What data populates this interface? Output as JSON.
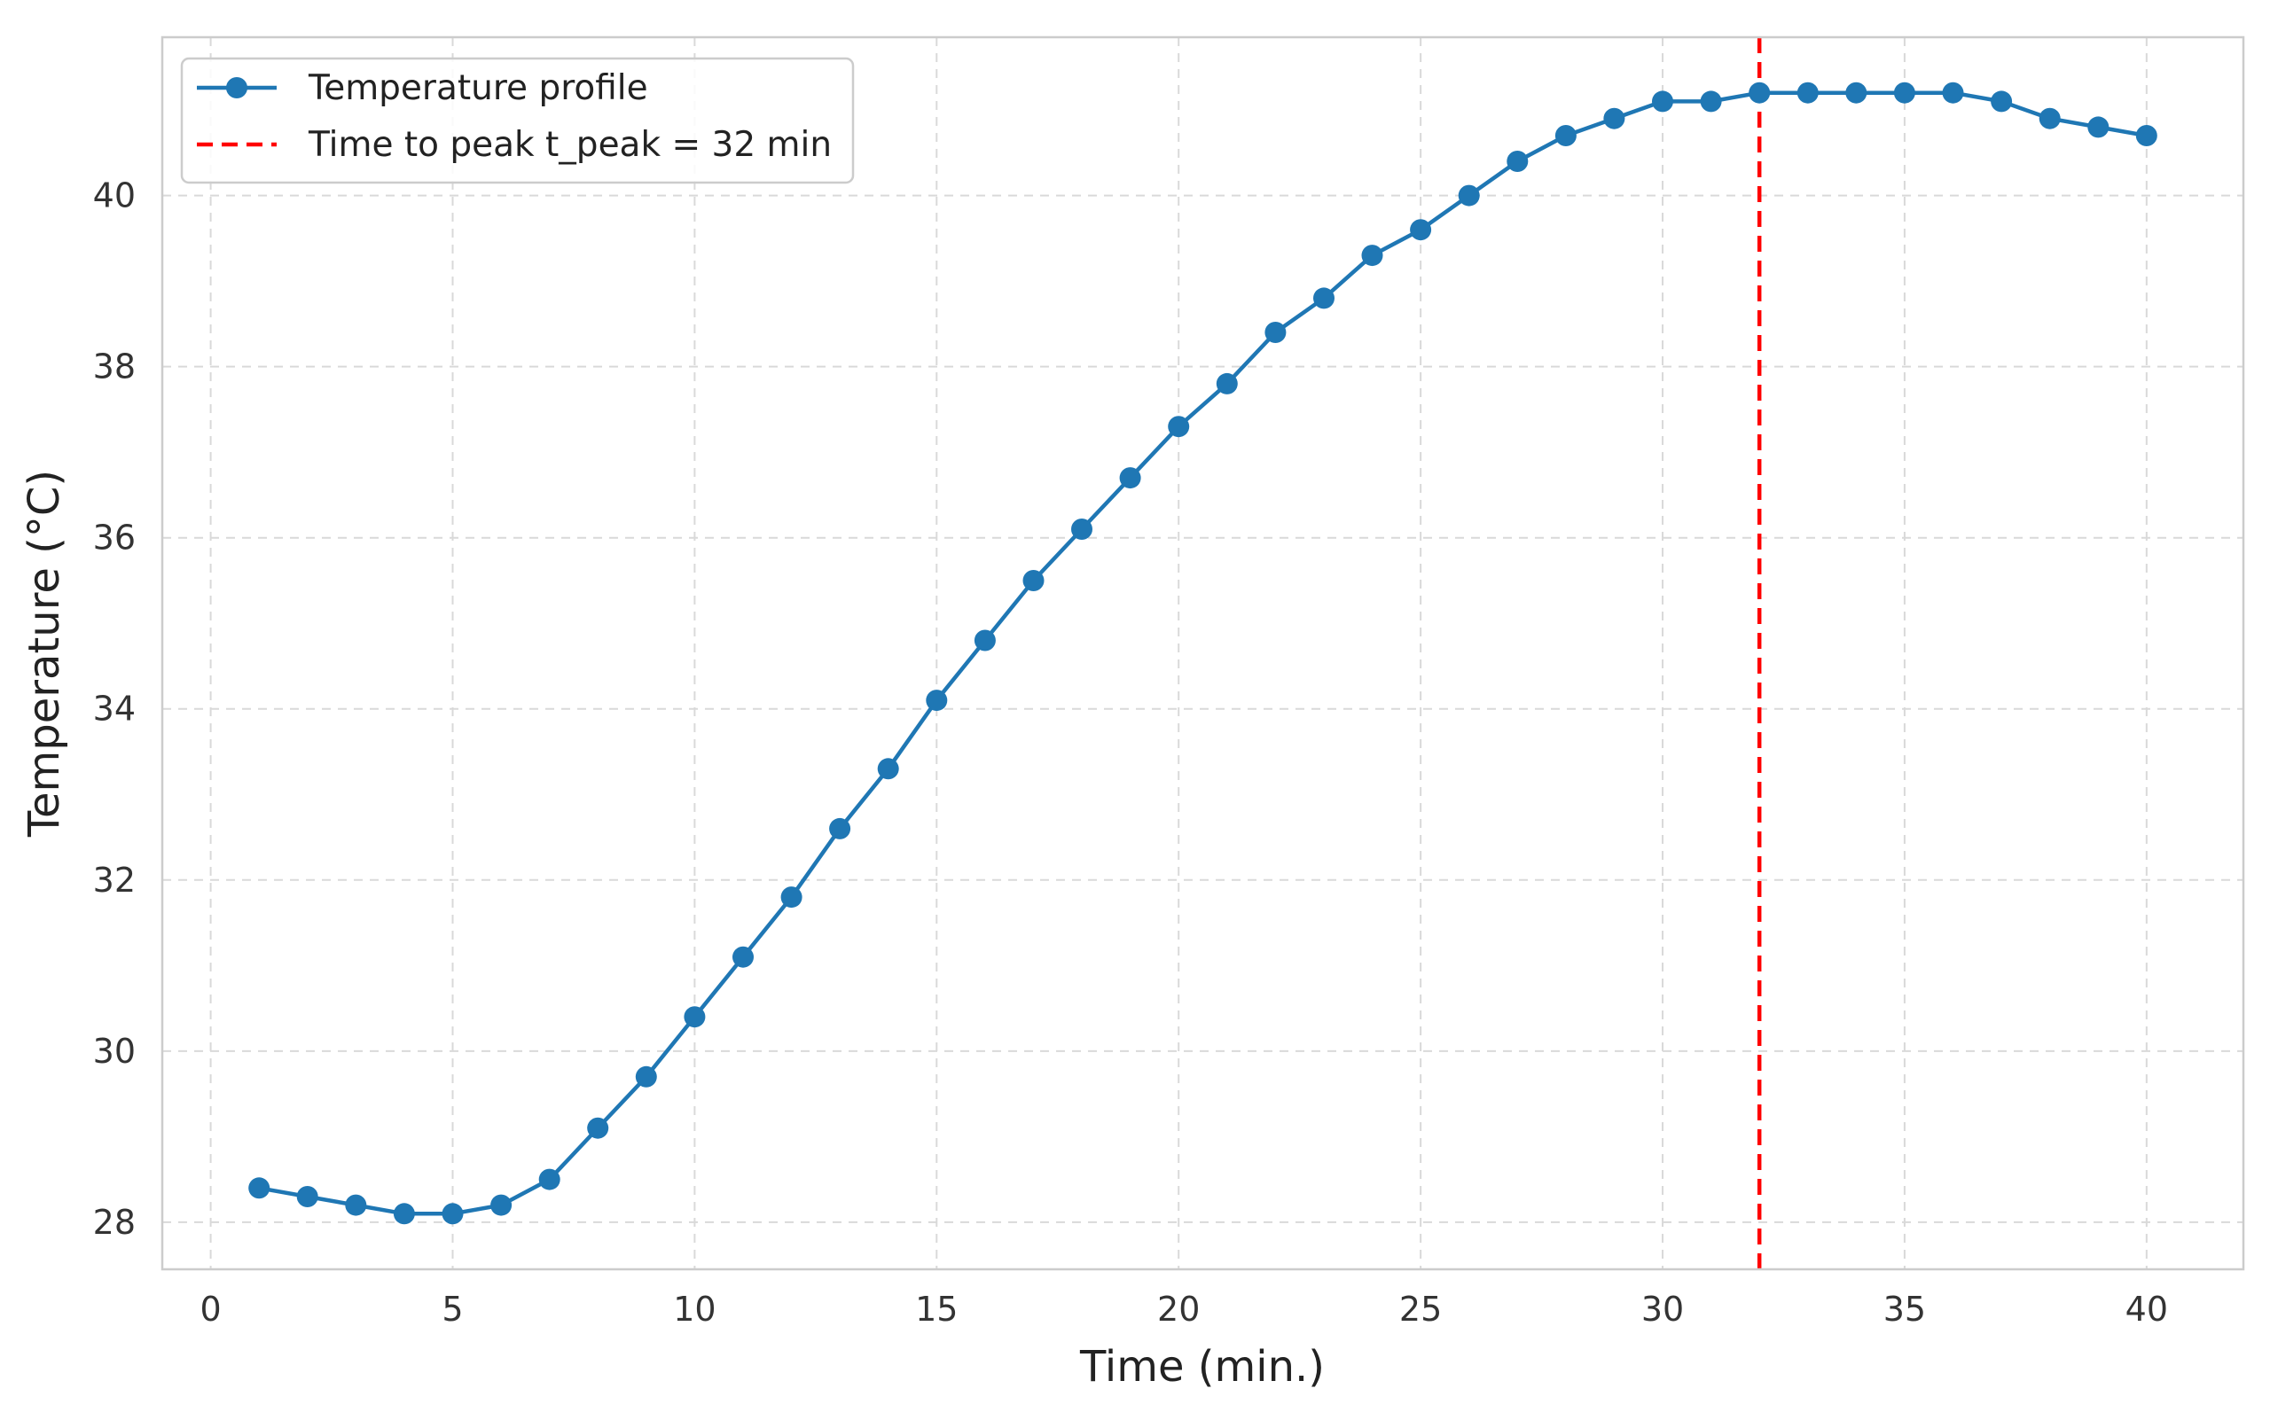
{
  "chart_data": {
    "type": "line",
    "xlabel": "Time (min.)",
    "ylabel": "Temperature (°C)",
    "xlim": [
      -1,
      42
    ],
    "ylim": [
      27.45,
      41.85
    ],
    "xticks": [
      0,
      5,
      10,
      15,
      20,
      25,
      30,
      35,
      40
    ],
    "yticks": [
      28,
      30,
      32,
      34,
      36,
      38,
      40
    ],
    "grid": true,
    "legend_position": "upper-left",
    "series": [
      {
        "name": "Temperature profile",
        "color": "#1f77b4",
        "marker": "circle",
        "x": [
          1,
          2,
          3,
          4,
          5,
          6,
          7,
          8,
          9,
          10,
          11,
          12,
          13,
          14,
          15,
          16,
          17,
          18,
          19,
          20,
          21,
          22,
          23,
          24,
          25,
          26,
          27,
          28,
          29,
          30,
          31,
          32,
          33,
          34,
          35,
          36,
          37,
          38,
          39,
          40
        ],
        "y": [
          28.4,
          28.3,
          28.2,
          28.1,
          28.1,
          28.2,
          28.5,
          29.1,
          29.7,
          30.4,
          31.1,
          31.8,
          32.6,
          33.3,
          34.1,
          34.8,
          35.5,
          36.1,
          36.7,
          37.3,
          37.8,
          38.4,
          38.8,
          39.3,
          39.6,
          40.0,
          40.4,
          40.7,
          40.9,
          41.1,
          41.1,
          41.2,
          41.2,
          41.2,
          41.2,
          41.2,
          41.1,
          40.9,
          40.8,
          40.7
        ]
      }
    ],
    "reference_lines": [
      {
        "orientation": "vertical",
        "x": 32,
        "label": "Time to peak t_peak = 32 min",
        "color": "#ff0000",
        "style": "dashed"
      }
    ]
  }
}
